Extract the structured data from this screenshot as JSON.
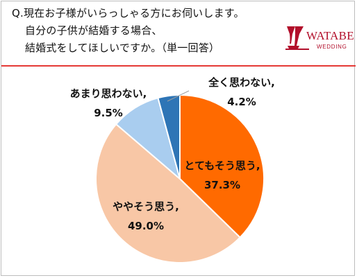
{
  "question": {
    "line1": "Q.現在お子様がいらっしゃる方にお伺いします。",
    "line2": "自分の子供が結婚する場合、",
    "line3": "結婚式をしてほしいですか。（単一回答）"
  },
  "logo": {
    "name": "WATABE",
    "sub": "WEDDING",
    "color": "#b20f2b"
  },
  "chart_data": {
    "type": "pie",
    "categories": [
      "とてもそう思う",
      "ややそう思う",
      "あまり思わない",
      "全く思わない"
    ],
    "values": [
      37.3,
      49.0,
      9.5,
      4.2
    ],
    "colors": [
      "#ff6a00",
      "#f8c7a6",
      "#a9cdef",
      "#2e75b6"
    ],
    "labels": [
      {
        "name": "とてもそう思う,",
        "value": "37.3%"
      },
      {
        "name": "ややそう思う,",
        "value": "49.0%"
      },
      {
        "name": "あまり思わない,",
        "value": "9.5%"
      },
      {
        "name": "全く思わない,",
        "value": "4.2%"
      }
    ]
  },
  "icons": {
    "logo_mark": "wine-glass-logo-icon"
  }
}
